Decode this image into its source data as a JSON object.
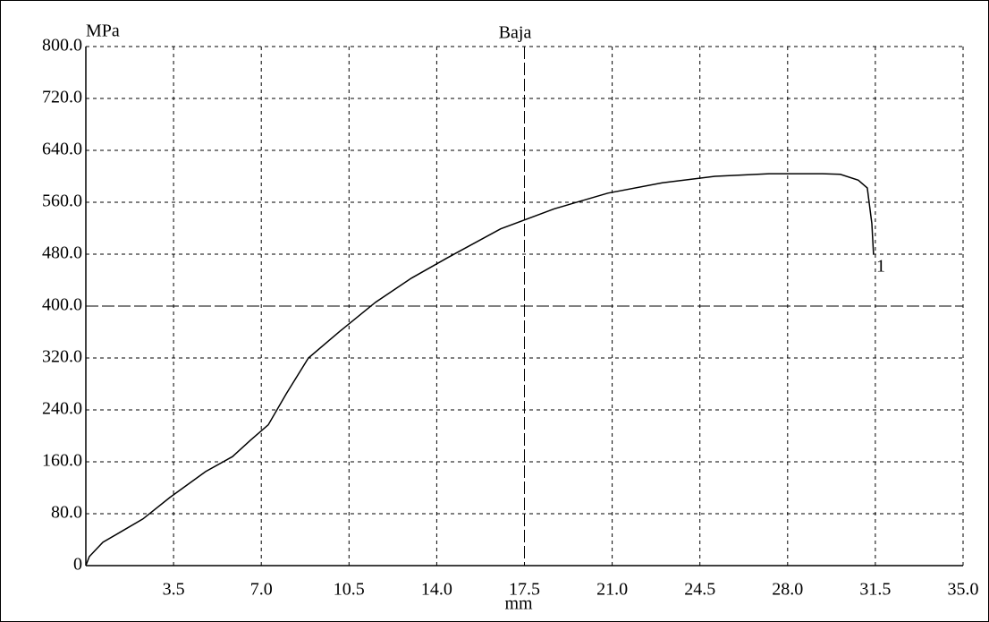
{
  "chart_data": {
    "type": "line",
    "title": "Baja",
    "y_label": "MPa",
    "x_label": "mm",
    "annotation": "1",
    "color": "#000000",
    "grid": true,
    "x": [
      0,
      0.14,
      0.68,
      1.39,
      2.28,
      3.35,
      4.78,
      5.85,
      6.56,
      7.28,
      8.0,
      8.88,
      10.13,
      11.56,
      12.99,
      14.41,
      16.55,
      18.69,
      20.83,
      23.0,
      25.1,
      27.26,
      29.4,
      30.1,
      30.82,
      31.18,
      31.36,
      31.43
    ],
    "values": [
      0,
      14,
      36,
      52,
      72,
      105,
      145,
      168,
      193,
      217,
      265,
      320,
      361,
      406,
      443,
      474,
      519,
      550,
      574,
      590,
      600,
      604,
      604,
      603,
      594,
      582,
      527,
      479
    ],
    "xlim": [
      0,
      35
    ],
    "xticks": [
      3.5,
      {
        "value": 7,
        "label": "7.0"
      },
      10.5,
      {
        "value": 14,
        "label": "14.0"
      },
      17.5,
      {
        "value": 21,
        "label": "21.0"
      },
      24.5,
      {
        "value": 28,
        "label": "28.0"
      },
      31.5,
      {
        "value": 35,
        "label": "35.0"
      }
    ],
    "ylim": [
      0,
      800
    ],
    "yticks": [
      0,
      {
        "value": 80,
        "label": "80.0"
      },
      {
        "value": 160,
        "label": "160.0"
      },
      {
        "value": 240,
        "label": "240.0"
      },
      {
        "value": 320,
        "label": "320.0"
      },
      {
        "value": 400,
        "label": "400.0"
      },
      {
        "value": 480,
        "label": "480.0"
      },
      {
        "value": 560,
        "label": "560.0"
      },
      {
        "value": 640,
        "label": "640.0"
      },
      {
        "value": 720,
        "label": "720.0"
      },
      {
        "value": 800,
        "label": "800.0"
      }
    ]
  }
}
